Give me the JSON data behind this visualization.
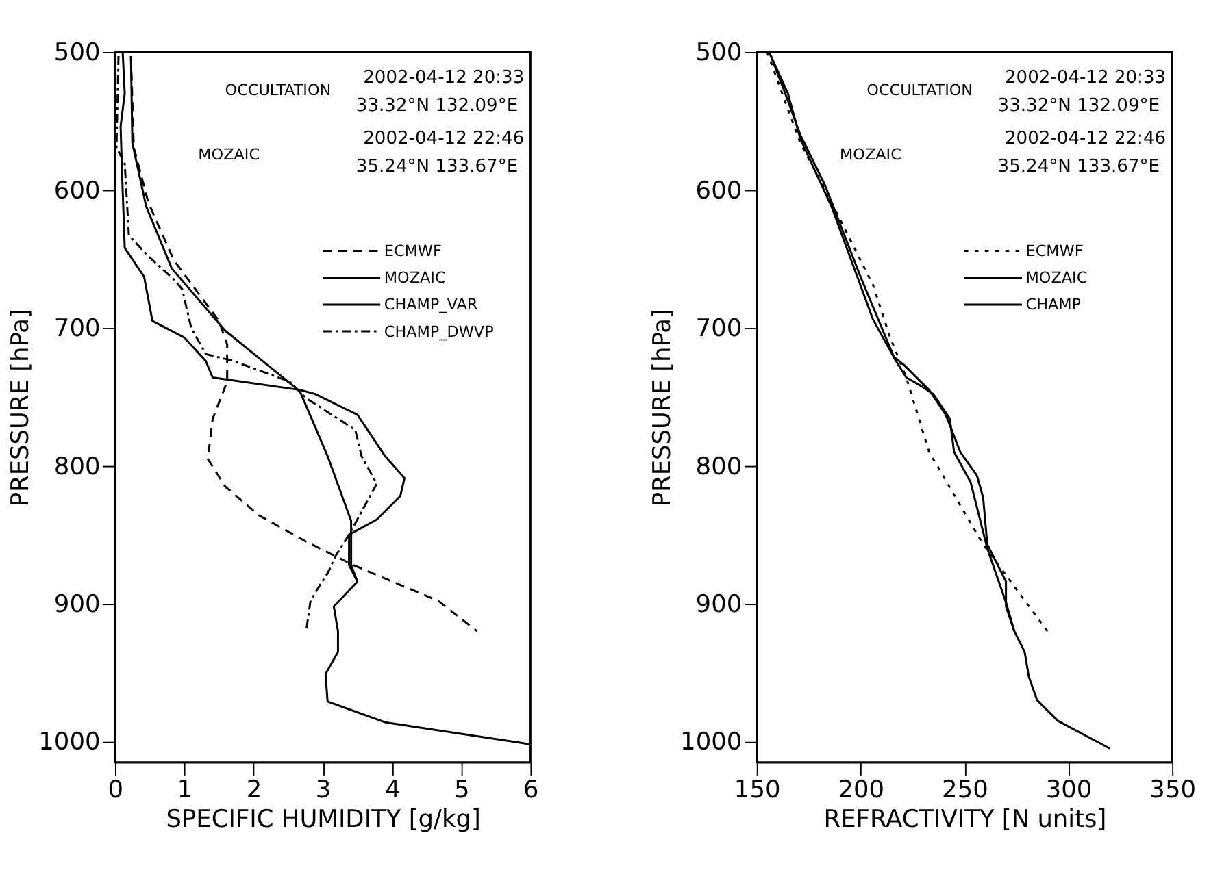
{
  "chart_data": [
    {
      "type": "line",
      "xlabel": "SPECIFIC HUMIDITY [g/kg]",
      "ylabel": "PRESSURE [hPa]",
      "xlim": [
        0,
        6
      ],
      "xticks": [
        0,
        1,
        2,
        3,
        4,
        5,
        6
      ],
      "ylim": [
        1015,
        500
      ],
      "yticks": [
        500,
        600,
        700,
        800,
        900,
        1000
      ],
      "grid": false,
      "legend": "top right",
      "annotations": [
        "OCCULTATION",
        "2002-04-12 20:33",
        "33.32°N 132.09°E",
        "MOZAIC",
        "2002-04-12 22:46",
        "35.24°N 133.67°E"
      ],
      "series": [
        {
          "name": "ECMWF",
          "color": "#000000",
          "line_style": "dashed",
          "x": [
            0.23,
            0.27,
            0.48,
            0.85,
            1.5,
            1.62,
            1.62,
            1.41,
            1.34,
            1.59,
            2.08,
            2.76,
            3.44,
            4.67,
            5.23
          ],
          "values": [
            503,
            569,
            609,
            651,
            695,
            712,
            739,
            766,
            795,
            815,
            836,
            855,
            872,
            898,
            920
          ]
        },
        {
          "name": "MOZAIC",
          "color": "#000000",
          "line_style": "solid",
          "x": [
            0.11,
            0.14,
            0.08,
            0.11,
            0.14,
            0.42,
            0.54,
            1.0,
            1.31,
            1.41,
            2.67,
            2.89,
            3.5,
            3.9,
            4.18,
            4.12,
            3.78,
            3.38,
            3.38,
            3.5,
            3.16,
            3.22,
            3.22,
            3.04,
            3.07,
            3.9,
            6.0
          ],
          "values": [
            500,
            530,
            554,
            600,
            642,
            663,
            695,
            707,
            724,
            736,
            745,
            748,
            763,
            793,
            809,
            822,
            839,
            850,
            872,
            884,
            902,
            920,
            935,
            951,
            971,
            986,
            1002
          ]
        },
        {
          "name": "CHAMP_VAR",
          "color": "#000000",
          "line_style": "solid",
          "x": [
            0.23,
            0.25,
            0.45,
            0.82,
            1.59,
            2.67,
            3.07,
            3.41,
            3.41,
            3.5
          ],
          "values": [
            503,
            566,
            612,
            657,
            702,
            746,
            793,
            840,
            872,
            884
          ]
        },
        {
          "name": "CHAMP_DWVP",
          "color": "#000000",
          "line_style": "dashdot",
          "x": [
            0.05,
            0.02,
            0.14,
            0.2,
            0.48,
            0.85,
            0.97,
            1.1,
            1.31,
            1.71,
            2.52,
            2.76,
            3.47,
            3.56,
            3.78,
            3.38,
            3.19,
            3.07,
            2.89,
            2.82,
            2.76
          ],
          "values": [
            503,
            569,
            581,
            633,
            648,
            665,
            672,
            700,
            719,
            724,
            739,
            751,
            774,
            793,
            813,
            850,
            865,
            878,
            892,
            899,
            920
          ]
        }
      ]
    },
    {
      "type": "line",
      "xlabel": "REFRACTIVITY [N units]",
      "ylabel": "PRESSURE [hPa]",
      "xlim": [
        150,
        350
      ],
      "xticks": [
        150,
        200,
        250,
        300,
        350
      ],
      "ylim": [
        1015,
        500
      ],
      "yticks": [
        500,
        600,
        700,
        800,
        900,
        1000
      ],
      "grid": false,
      "legend": "top right",
      "annotations": [
        "OCCULTATION",
        "2002-04-12 20:33",
        "33.32°N 132.09°E",
        "MOZAIC",
        "2002-04-12 22:46",
        "35.24°N 133.67°E"
      ],
      "series": [
        {
          "name": "ECMWF",
          "color": "#000000",
          "line_style": "dotted",
          "x": [
            155,
            171,
            183,
            206,
            214,
            222,
            233,
            259,
            290
          ],
          "values": [
            500,
            566,
            600,
            669,
            706,
            736,
            790,
            857,
            920
          ]
        },
        {
          "name": "MOZAIC",
          "color": "#000000",
          "line_style": "solid",
          "x": [
            156,
            163,
            171,
            183,
            200,
            216,
            221,
            233,
            241,
            248,
            256,
            259,
            261,
            270,
            270,
            274,
            279,
            281,
            285,
            295,
            320
          ],
          "values": [
            500,
            527,
            560,
            597,
            663,
            721,
            727,
            745,
            763,
            790,
            807,
            823,
            857,
            884,
            902,
            920,
            935,
            953,
            970,
            985,
            1005
          ]
        },
        {
          "name": "CHAMP",
          "color": "#000000",
          "line_style": "solid",
          "x": [
            156,
            165,
            171,
            186,
            206,
            217,
            222,
            229,
            235,
            243,
            245,
            253,
            261,
            270,
            274
          ],
          "values": [
            500,
            530,
            563,
            612,
            694,
            724,
            736,
            742,
            748,
            766,
            790,
            812,
            860,
            899,
            920
          ]
        }
      ]
    }
  ]
}
